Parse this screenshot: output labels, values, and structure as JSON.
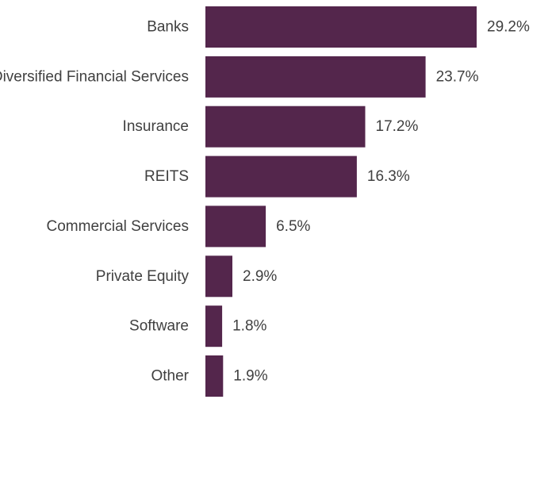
{
  "chart_data": {
    "type": "bar",
    "orientation": "horizontal",
    "categories": [
      "Banks",
      "Diversified Financial Services",
      "Insurance",
      "REITS",
      "Commercial Services",
      "Private Equity",
      "Software",
      "Other"
    ],
    "values": [
      29.2,
      23.7,
      17.2,
      16.3,
      6.5,
      2.9,
      1.8,
      1.9
    ],
    "value_labels": [
      "29.2%",
      "23.7%",
      "17.2%",
      "16.3%",
      "6.5%",
      "2.9%",
      "1.8%",
      "1.9%"
    ],
    "unit": "%",
    "xlim": [
      0,
      29.2
    ],
    "grid": false,
    "legend": "none",
    "bar_color": "#54264c",
    "text_color": "#404040"
  }
}
